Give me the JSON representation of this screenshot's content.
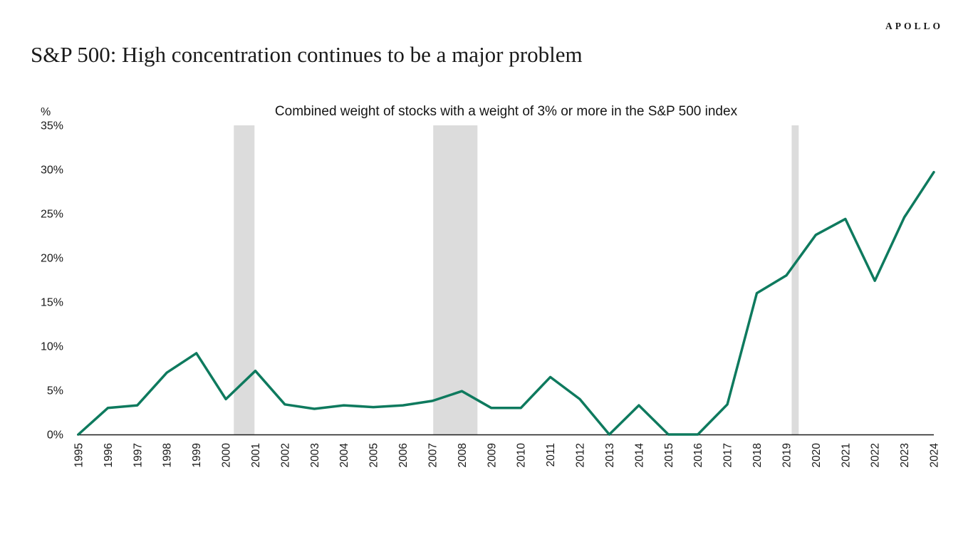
{
  "page": {
    "logo": "APOLLO",
    "title": "S&P 500: High concentration continues to be a major problem"
  },
  "chart_data": {
    "type": "line",
    "title": "Combined weight of stocks with a weight of 3% or more in the S&P 500 index",
    "unit_label": "%",
    "categories": [
      "1995",
      "1996",
      "1997",
      "1998",
      "1999",
      "2000",
      "2001",
      "2002",
      "2003",
      "2004",
      "2005",
      "2006",
      "2007",
      "2008",
      "2009",
      "2010",
      "2011",
      "2012",
      "2013",
      "2014",
      "2015",
      "2016",
      "2017",
      "2018",
      "2019",
      "2020",
      "2021",
      "2022",
      "2023",
      "2024"
    ],
    "values": [
      0,
      3.0,
      3.3,
      7.0,
      9.2,
      4.0,
      7.2,
      3.4,
      2.9,
      3.3,
      3.1,
      3.3,
      3.8,
      4.9,
      3.0,
      3.0,
      6.5,
      4.0,
      0.0,
      3.3,
      0.0,
      0.0,
      3.4,
      16.0,
      18.0,
      22.6,
      24.4,
      17.4,
      24.6,
      29.7
    ],
    "ylim": [
      0,
      35
    ],
    "ytick_step": 5,
    "ytick_suffix": "%",
    "grid": "off",
    "legend": "none",
    "shaded_periods": [
      {
        "from": 2000.27,
        "to": 2000.97
      },
      {
        "from": 2007.03,
        "to": 2008.53
      },
      {
        "from": 2019.18,
        "to": 2019.42
      }
    ],
    "colors": {
      "line": "#0e7a5e",
      "band": "#dcdcdc",
      "axis": "#1a1a1a",
      "text": "#1a1a1a"
    }
  }
}
